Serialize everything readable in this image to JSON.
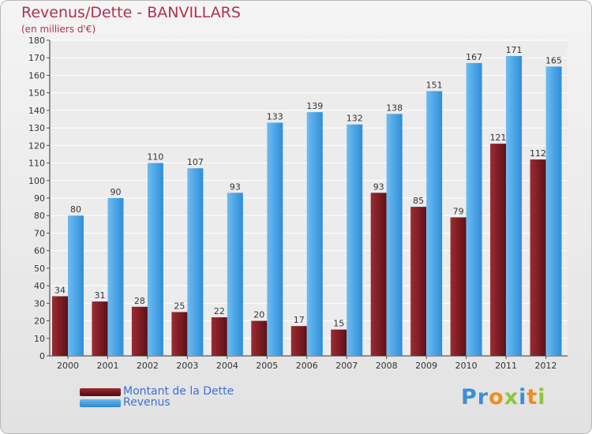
{
  "header": {
    "title": "Revenus/Dette - BANVILLARS",
    "subtitle": "(en milliers d'€)"
  },
  "chart_data": {
    "type": "bar",
    "categories": [
      "2000",
      "2001",
      "2002",
      "2003",
      "2004",
      "2005",
      "2006",
      "2007",
      "2008",
      "2009",
      "2010",
      "2011",
      "2012"
    ],
    "series": [
      {
        "name": "Montant de la Dette",
        "color": "#7a1e24",
        "values": [
          34,
          31,
          28,
          25,
          22,
          20,
          17,
          15,
          93,
          85,
          79,
          121,
          112
        ]
      },
      {
        "name": "Revenus",
        "color": "#4aa3e6",
        "values": [
          80,
          90,
          110,
          107,
          93,
          133,
          139,
          132,
          138,
          151,
          167,
          171,
          165
        ]
      }
    ],
    "ylim": [
      0,
      180
    ],
    "ytick_step": 10,
    "grid": true,
    "data_labels": true,
    "legend_position": "bottom-left"
  },
  "logo": {
    "letters": [
      {
        "char": "P",
        "color": "#3a8fd8"
      },
      {
        "char": "r",
        "color": "#3a8fd8"
      },
      {
        "char": "o",
        "color": "#f28c1e"
      },
      {
        "char": "x",
        "color": "#8cc63f"
      },
      {
        "char": "i",
        "color": "#3a8fd8"
      },
      {
        "char": "t",
        "color": "#f28c1e"
      },
      {
        "char": "i",
        "color": "#8cc63f"
      }
    ]
  }
}
